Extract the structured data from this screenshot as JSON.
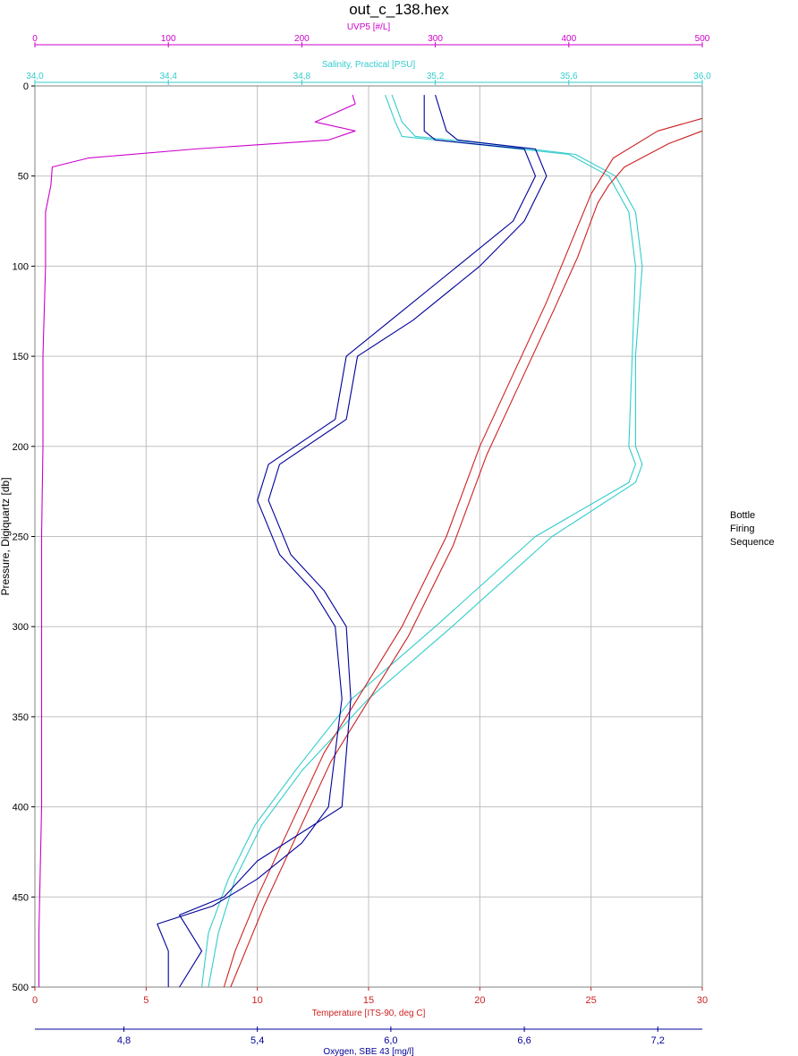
{
  "chart_data": {
    "type": "line",
    "title": "out_c_138.hex",
    "y_axis": {
      "label": "Pressure, Digiquartz [db]",
      "range": [
        0,
        500
      ],
      "ticks": [
        0,
        50,
        100,
        150,
        200,
        250,
        300,
        350,
        400,
        450,
        500
      ],
      "reversed": true
    },
    "axes": {
      "uvp5": {
        "label": "UVP5 [#/L]",
        "color": "#cc00cc",
        "range": [
          0,
          500
        ],
        "ticks": [
          "0",
          "100",
          "200",
          "300",
          "400",
          "500"
        ]
      },
      "salinity": {
        "label": "Salinity, Practical [PSU]",
        "color": "#33cccc",
        "range": [
          34.0,
          36.0
        ],
        "ticks": [
          "34,0",
          "34,4",
          "34,8",
          "35,2",
          "35,6",
          "36,0"
        ]
      },
      "temperature": {
        "label": "Temperature [ITS-90, deg C]",
        "color": "#cc2222",
        "range": [
          0,
          30
        ],
        "ticks": [
          "0",
          "5",
          "10",
          "15",
          "20",
          "25",
          "30"
        ]
      },
      "oxygen": {
        "label": "Oxygen, SBE 43 [mg/l]",
        "color": "#000099",
        "range": [
          4.4,
          7.4
        ],
        "ticks": [
          "4,8",
          "5,4",
          "6,0",
          "6,6",
          "7,2"
        ],
        "tick_values": [
          4.8,
          5.4,
          6.0,
          6.6,
          7.2
        ]
      }
    },
    "grid": true,
    "legend": {
      "title_lines": [
        "Bottle",
        "Firing",
        "Sequence"
      ],
      "placement": "right"
    },
    "series": [
      {
        "axis": "uvp5",
        "color": "#cc00cc",
        "x": [
          238,
          240,
          210,
          240,
          220,
          120,
          40,
          13,
          12,
          8,
          8,
          6,
          6,
          5,
          5,
          5,
          3,
          3
        ],
        "y": [
          5,
          10,
          20,
          25,
          30,
          35,
          40,
          45,
          55,
          70,
          100,
          150,
          200,
          250,
          300,
          400,
          470,
          500
        ]
      },
      {
        "axis": "salinity",
        "color": "#33cccc",
        "x": [
          35.05,
          35.08,
          35.1,
          35.3,
          35.6,
          35.72,
          35.78,
          35.8,
          35.79,
          35.78,
          35.8,
          35.78,
          35.5,
          35.2,
          34.95,
          34.78,
          34.66,
          34.58,
          34.52,
          34.5
        ],
        "y": [
          5,
          20,
          28,
          32,
          38,
          50,
          70,
          100,
          150,
          200,
          210,
          220,
          250,
          300,
          340,
          380,
          410,
          440,
          470,
          500
        ]
      },
      {
        "axis": "salinity",
        "color": "#33cccc",
        "x": [
          35.07,
          35.1,
          35.14,
          35.35,
          35.62,
          35.74,
          35.8,
          35.82,
          35.8,
          35.8,
          35.82,
          35.8,
          35.55,
          35.25,
          35.0,
          34.8,
          34.68,
          34.6,
          34.55,
          34.52
        ],
        "y": [
          5,
          20,
          28,
          32,
          38,
          50,
          70,
          100,
          150,
          200,
          210,
          220,
          250,
          300,
          340,
          380,
          410,
          440,
          470,
          500
        ]
      },
      {
        "axis": "temperature",
        "color": "#cc2222",
        "x": [
          30,
          28,
          26,
          25.5,
          25,
          24,
          23,
          21.5,
          20,
          18.5,
          16.5,
          14.5,
          13,
          11.5,
          10,
          9,
          8.5
        ],
        "y": [
          18,
          25,
          40,
          50,
          60,
          90,
          120,
          160,
          200,
          250,
          300,
          340,
          370,
          410,
          450,
          480,
          500
        ]
      },
      {
        "axis": "temperature",
        "color": "#cc2222",
        "x": [
          30,
          28.5,
          26.5,
          25.8,
          25.3,
          24.4,
          23.3,
          21.8,
          20.3,
          18.8,
          16.8,
          14.8,
          13.3,
          11.8,
          10.3,
          9.3,
          8.8
        ],
        "y": [
          25,
          32,
          45,
          55,
          65,
          95,
          125,
          165,
          205,
          255,
          305,
          345,
          375,
          415,
          455,
          485,
          500
        ]
      },
      {
        "axis": "oxygen",
        "color": "#000099",
        "x": [
          6.15,
          6.15,
          6.2,
          6.6,
          6.65,
          6.55,
          6.3,
          6.0,
          5.8,
          5.75,
          5.45,
          5.4,
          5.5,
          5.65,
          5.75,
          5.78,
          5.72,
          5.6,
          5.4,
          5.2,
          4.95,
          5.0,
          5.0
        ],
        "y": [
          5,
          25,
          30,
          35,
          50,
          75,
          100,
          130,
          150,
          185,
          210,
          230,
          260,
          280,
          300,
          340,
          400,
          420,
          440,
          455,
          465,
          480,
          500
        ]
      },
      {
        "axis": "oxygen",
        "color": "#000099",
        "x": [
          6.2,
          6.25,
          6.3,
          6.65,
          6.7,
          6.6,
          6.4,
          6.1,
          5.85,
          5.8,
          5.5,
          5.45,
          5.55,
          5.7,
          5.8,
          5.82,
          5.78,
          5.4,
          5.25,
          5.05,
          5.15,
          5.05
        ],
        "y": [
          5,
          25,
          30,
          35,
          50,
          75,
          100,
          130,
          150,
          185,
          210,
          230,
          260,
          280,
          300,
          340,
          400,
          430,
          450,
          460,
          480,
          500
        ]
      }
    ]
  }
}
